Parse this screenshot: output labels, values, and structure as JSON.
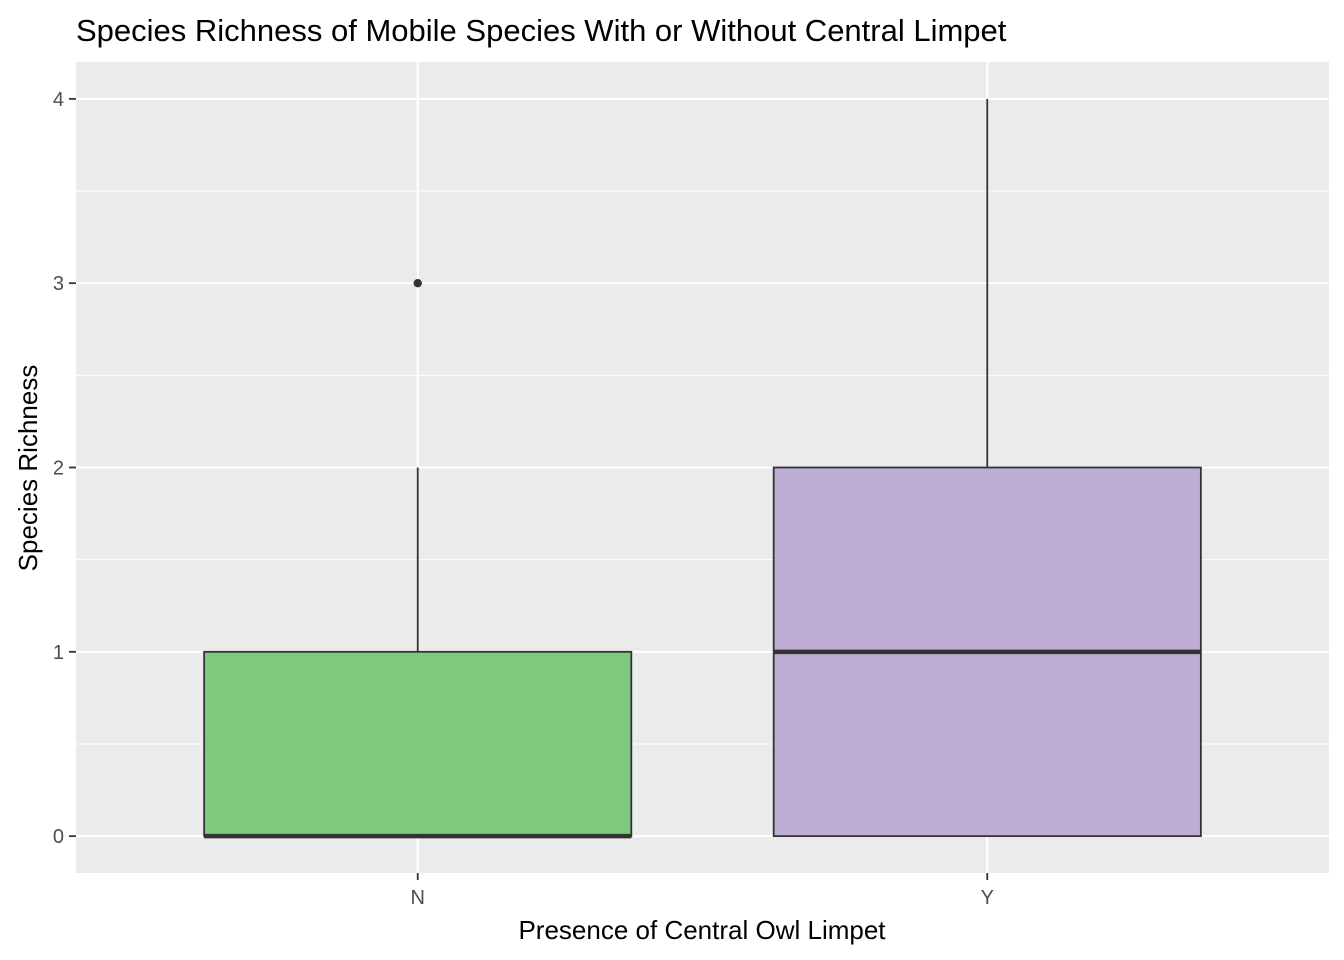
{
  "chart_data": {
    "type": "boxplot",
    "title": "Species Richness of Mobile Species With or Without Central Limpet",
    "xlabel": "Presence of Central Owl Limpet",
    "ylabel": "Species Richness",
    "categories": [
      "N",
      "Y"
    ],
    "yticks": [
      "0",
      "1",
      "2",
      "3",
      "4"
    ],
    "ylim": [
      -0.2,
      4.2
    ],
    "grid": true,
    "background_color": "#EBEBEB",
    "boxes": [
      {
        "category": "N",
        "min": 0,
        "q1": 0,
        "median": 0,
        "q3": 1,
        "max": 2,
        "outliers": [
          3
        ],
        "color": "#7FC97F"
      },
      {
        "category": "Y",
        "min": 0,
        "q1": 0,
        "median": 1,
        "q3": 2,
        "max": 4,
        "outliers": [],
        "color": "#BEAED4"
      }
    ]
  }
}
